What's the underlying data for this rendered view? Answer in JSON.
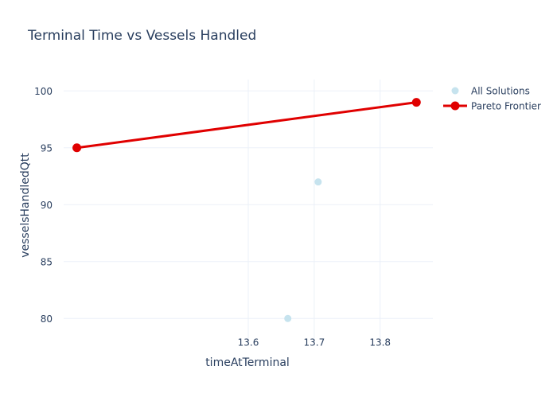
{
  "chart_data": {
    "type": "scatter",
    "title": "Terminal Time vs Vessels Handled",
    "xlabel": "timeAtTerminal",
    "ylabel": "vesselsHandledQtt",
    "xlim": [
      13.32,
      13.88
    ],
    "ylim": [
      78.2,
      101.0
    ],
    "xticks": [
      13.6,
      13.7,
      13.8
    ],
    "xtick_labels": [
      "13.6",
      "13.7",
      "13.8"
    ],
    "yticks": [
      80,
      85,
      90,
      95,
      100
    ],
    "ytick_labels": [
      "80",
      "85",
      "90",
      "95",
      "100"
    ],
    "grid": true,
    "legend_position": "top-right",
    "series": [
      {
        "name": "All Solutions",
        "mode": "markers",
        "color": "#c6e3ee",
        "points": [
          {
            "x": 13.34,
            "y": 95
          },
          {
            "x": 13.66,
            "y": 80
          },
          {
            "x": 13.706,
            "y": 92
          },
          {
            "x": 13.855,
            "y": 99
          }
        ]
      },
      {
        "name": "Pareto Frontier",
        "mode": "lines+markers",
        "color": "#e00000",
        "points": [
          {
            "x": 13.34,
            "y": 95
          },
          {
            "x": 13.855,
            "y": 99
          }
        ]
      }
    ]
  }
}
